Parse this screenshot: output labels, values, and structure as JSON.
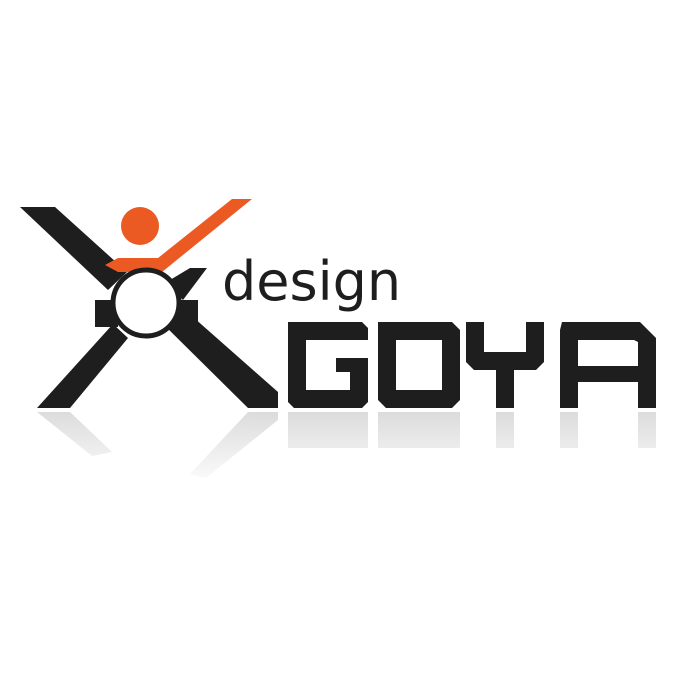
{
  "logo": {
    "tagline": "design",
    "brand": "GOYA",
    "colors": {
      "dark": "#1e1e1e",
      "accent": "#ec5a24",
      "background": "#ffffff"
    }
  }
}
